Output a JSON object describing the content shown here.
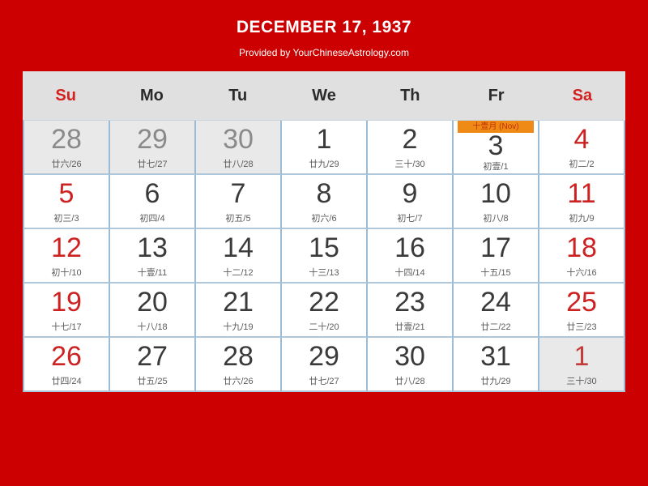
{
  "header": {
    "title": "DECEMBER 17, 1937",
    "subtitle": "Provided by YourChineseAstrology.com"
  },
  "colors": {
    "page_background": "#cc0000",
    "header_text": "#ffffff",
    "weekday_header_bg": "#e0e0e0",
    "weekend_red": "#cc2222",
    "current_day_text": "#3a3a3a",
    "other_month_bg": "#e9e9e9",
    "other_month_text": "#8a8a8a",
    "grid_border": "#9cbbd4",
    "badge_bg": "#ef8a17",
    "badge_text": "#c23000"
  },
  "calendar": {
    "weekdays": [
      {
        "label": "Su",
        "weekend": true
      },
      {
        "label": "Mo",
        "weekend": false
      },
      {
        "label": "Tu",
        "weekend": false
      },
      {
        "label": "We",
        "weekend": false
      },
      {
        "label": "Th",
        "weekend": false
      },
      {
        "label": "Fr",
        "weekend": false
      },
      {
        "label": "Sa",
        "weekend": true
      }
    ],
    "month_badge": "十壹月 (Nov)",
    "weeks": [
      [
        {
          "day": "28",
          "lunar": "廿六/26",
          "style": "out"
        },
        {
          "day": "29",
          "lunar": "廿七/27",
          "style": "out"
        },
        {
          "day": "30",
          "lunar": "廿八/28",
          "style": "out"
        },
        {
          "day": "1",
          "lunar": "廿九/29",
          "style": "wd"
        },
        {
          "day": "2",
          "lunar": "三十/30",
          "style": "wd"
        },
        {
          "day": "3",
          "lunar": "初壹/1",
          "style": "wd",
          "badge": true
        },
        {
          "day": "4",
          "lunar": "初二/2",
          "style": "we"
        }
      ],
      [
        {
          "day": "5",
          "lunar": "初三/3",
          "style": "we"
        },
        {
          "day": "6",
          "lunar": "初四/4",
          "style": "wd"
        },
        {
          "day": "7",
          "lunar": "初五/5",
          "style": "wd"
        },
        {
          "day": "8",
          "lunar": "初六/6",
          "style": "wd"
        },
        {
          "day": "9",
          "lunar": "初七/7",
          "style": "wd"
        },
        {
          "day": "10",
          "lunar": "初八/8",
          "style": "wd"
        },
        {
          "day": "11",
          "lunar": "初九/9",
          "style": "we"
        }
      ],
      [
        {
          "day": "12",
          "lunar": "初十/10",
          "style": "we"
        },
        {
          "day": "13",
          "lunar": "十壹/11",
          "style": "wd"
        },
        {
          "day": "14",
          "lunar": "十二/12",
          "style": "wd"
        },
        {
          "day": "15",
          "lunar": "十三/13",
          "style": "wd"
        },
        {
          "day": "16",
          "lunar": "十四/14",
          "style": "wd"
        },
        {
          "day": "17",
          "lunar": "十五/15",
          "style": "wd"
        },
        {
          "day": "18",
          "lunar": "十六/16",
          "style": "we"
        }
      ],
      [
        {
          "day": "19",
          "lunar": "十七/17",
          "style": "we"
        },
        {
          "day": "20",
          "lunar": "十八/18",
          "style": "wd"
        },
        {
          "day": "21",
          "lunar": "十九/19",
          "style": "wd"
        },
        {
          "day": "22",
          "lunar": "二十/20",
          "style": "wd"
        },
        {
          "day": "23",
          "lunar": "廿壹/21",
          "style": "wd"
        },
        {
          "day": "24",
          "lunar": "廿二/22",
          "style": "wd"
        },
        {
          "day": "25",
          "lunar": "廿三/23",
          "style": "we"
        }
      ],
      [
        {
          "day": "26",
          "lunar": "廿四/24",
          "style": "we"
        },
        {
          "day": "27",
          "lunar": "廿五/25",
          "style": "wd"
        },
        {
          "day": "28",
          "lunar": "廿六/26",
          "style": "wd"
        },
        {
          "day": "29",
          "lunar": "廿七/27",
          "style": "wd"
        },
        {
          "day": "30",
          "lunar": "廿八/28",
          "style": "wd"
        },
        {
          "day": "31",
          "lunar": "廿九/29",
          "style": "wd"
        },
        {
          "day": "1",
          "lunar": "三十/30",
          "style": "out-we"
        }
      ]
    ]
  }
}
